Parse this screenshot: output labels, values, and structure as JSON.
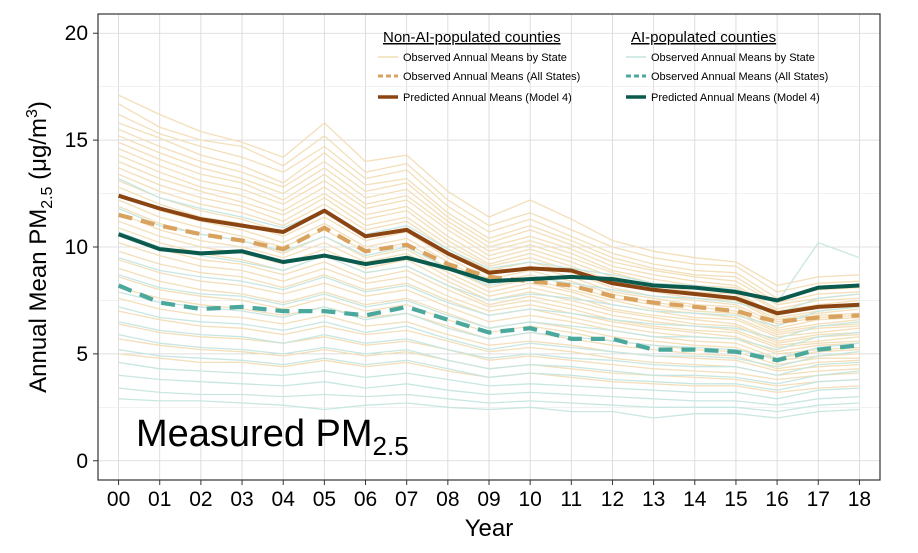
{
  "chart_data": {
    "type": "line",
    "title": "",
    "xlabel": "Year",
    "ylabel_main": "Annual Mean PM",
    "ylabel_sub": "2.5",
    "ylabel_unit_pre": " (μg/m",
    "ylabel_unit_sup": "3",
    "ylabel_unit_post": ")",
    "annotation_main": "Measured PM",
    "annotation_sub": "2.5",
    "x": [
      "00",
      "01",
      "02",
      "03",
      "04",
      "05",
      "06",
      "07",
      "08",
      "09",
      "10",
      "11",
      "12",
      "13",
      "14",
      "15",
      "16",
      "17",
      "18"
    ],
    "ylim": [
      -0.9,
      20.9
    ],
    "yticks": [
      0,
      5,
      10,
      15,
      20
    ],
    "grid": true,
    "legend_position": "top-right",
    "legend_groups": [
      {
        "heading": "Non-AI-populated counties",
        "entries": [
          "Observed Annual Means by State",
          "Observed Annual Means (All States)",
          "Predicted Annual Means (Model 4)"
        ]
      },
      {
        "heading": "AI-populated counties",
        "entries": [
          "Observed Annual Means by State",
          "Observed Annual Means (All States)",
          "Predicted Annual Means (Model 4)"
        ]
      }
    ],
    "series": [
      {
        "group": "Non-AI-populated counties",
        "kind": "all-states-observed",
        "color": "#d9a25f",
        "values": [
          11.5,
          11.0,
          10.6,
          10.3,
          9.9,
          10.9,
          9.8,
          10.1,
          9.2,
          8.6,
          8.4,
          8.2,
          7.7,
          7.4,
          7.2,
          7.0,
          6.5,
          6.7,
          6.8
        ]
      },
      {
        "group": "Non-AI-populated counties",
        "kind": "model4-predicted",
        "color": "#8b4513",
        "values": [
          12.4,
          11.8,
          11.3,
          11.0,
          10.7,
          11.7,
          10.5,
          10.8,
          9.7,
          8.8,
          9.0,
          8.9,
          8.3,
          8.0,
          7.8,
          7.6,
          6.9,
          7.2,
          7.3
        ]
      },
      {
        "group": "AI-populated counties",
        "kind": "all-states-observed",
        "color": "#4aa89c",
        "values": [
          8.2,
          7.4,
          7.1,
          7.2,
          7.0,
          7.0,
          6.8,
          7.2,
          6.6,
          6.0,
          6.2,
          5.7,
          5.7,
          5.2,
          5.2,
          5.1,
          4.7,
          5.2,
          5.4
        ]
      },
      {
        "group": "AI-populated counties",
        "kind": "model4-predicted",
        "color": "#0b5a4e",
        "values": [
          10.6,
          9.9,
          9.7,
          9.8,
          9.3,
          9.6,
          9.2,
          9.5,
          9.0,
          8.4,
          8.5,
          8.6,
          8.5,
          8.2,
          8.1,
          7.9,
          7.5,
          8.1,
          8.2
        ]
      }
    ],
    "state_series": [
      {
        "group": "Non-AI-populated counties",
        "color": "#f2ddb5",
        "lines": [
          [
            17.1,
            16.2,
            15.4,
            14.9,
            14.2,
            15.8,
            14.0,
            14.3,
            12.6,
            11.4,
            12.2,
            11.3,
            10.3,
            9.8,
            9.5,
            9.3,
            8.2,
            8.6,
            8.7
          ],
          [
            16.7,
            15.6,
            15.0,
            14.7,
            13.8,
            15.2,
            13.5,
            13.9,
            12.2,
            11.0,
            11.6,
            10.8,
            10.0,
            9.5,
            9.2,
            9.1,
            7.9,
            8.3,
            8.4
          ],
          [
            16.2,
            15.3,
            14.7,
            14.2,
            13.5,
            14.7,
            13.2,
            13.6,
            11.9,
            10.7,
            11.3,
            10.5,
            9.7,
            9.2,
            8.9,
            8.8,
            7.6,
            8.0,
            8.1
          ],
          [
            15.8,
            15.1,
            14.3,
            13.8,
            13.0,
            14.4,
            12.9,
            13.2,
            11.6,
            10.4,
            11.0,
            10.3,
            9.5,
            9.0,
            8.7,
            8.6,
            7.4,
            7.8,
            7.9
          ],
          [
            15.5,
            14.7,
            14.0,
            13.5,
            12.8,
            14.0,
            12.6,
            13.0,
            11.4,
            10.2,
            10.8,
            10.1,
            9.3,
            8.9,
            8.6,
            8.4,
            7.3,
            7.6,
            7.8
          ],
          [
            15.2,
            14.4,
            13.7,
            13.2,
            12.5,
            13.7,
            12.3,
            12.7,
            11.2,
            10.0,
            10.5,
            9.9,
            9.1,
            8.7,
            8.4,
            8.2,
            7.1,
            7.5,
            7.6
          ],
          [
            14.9,
            14.1,
            13.4,
            13.0,
            12.2,
            13.4,
            12.0,
            12.4,
            11.0,
            9.8,
            10.3,
            9.7,
            8.9,
            8.5,
            8.2,
            8.1,
            7.0,
            7.3,
            7.5
          ],
          [
            14.6,
            13.8,
            13.1,
            12.7,
            12.0,
            13.1,
            11.8,
            12.2,
            10.8,
            9.6,
            10.1,
            9.5,
            8.8,
            8.3,
            8.1,
            7.9,
            6.8,
            7.2,
            7.3
          ],
          [
            14.3,
            13.5,
            12.8,
            12.4,
            11.7,
            12.8,
            11.5,
            11.9,
            10.5,
            9.4,
            9.9,
            9.3,
            8.6,
            8.2,
            7.9,
            7.8,
            6.7,
            7.0,
            7.2
          ],
          [
            14.0,
            13.2,
            12.6,
            12.1,
            11.5,
            12.5,
            11.3,
            11.7,
            10.3,
            9.2,
            9.7,
            9.1,
            8.4,
            8.0,
            7.8,
            7.6,
            6.6,
            6.9,
            7.1
          ],
          [
            13.7,
            12.9,
            12.3,
            11.9,
            11.2,
            12.3,
            11.0,
            11.4,
            10.1,
            9.1,
            9.5,
            8.9,
            8.3,
            7.9,
            7.6,
            7.5,
            6.5,
            6.8,
            6.9
          ],
          [
            13.4,
            12.6,
            12.0,
            11.6,
            11.0,
            12.0,
            10.8,
            11.2,
            9.9,
            8.9,
            9.3,
            8.8,
            8.1,
            7.7,
            7.5,
            7.3,
            6.4,
            6.7,
            6.8
          ],
          [
            13.1,
            12.3,
            11.7,
            11.3,
            10.7,
            11.7,
            10.5,
            10.9,
            9.7,
            8.7,
            9.1,
            8.6,
            7.9,
            7.6,
            7.3,
            7.2,
            6.2,
            6.6,
            6.7
          ],
          [
            12.8,
            12.0,
            11.4,
            11.1,
            10.5,
            11.4,
            10.3,
            10.7,
            9.5,
            8.5,
            8.9,
            8.4,
            7.8,
            7.4,
            7.2,
            7.0,
            6.1,
            6.4,
            6.6
          ],
          [
            12.5,
            11.7,
            11.2,
            10.8,
            10.2,
            11.1,
            10.0,
            10.4,
            9.3,
            8.3,
            8.7,
            8.2,
            7.6,
            7.3,
            7.0,
            6.9,
            6.0,
            6.3,
            6.4
          ],
          [
            12.2,
            11.4,
            10.9,
            10.5,
            10.0,
            10.8,
            9.8,
            10.2,
            9.0,
            8.1,
            8.5,
            8.0,
            7.5,
            7.1,
            6.9,
            6.7,
            5.9,
            6.2,
            6.3
          ],
          [
            11.9,
            11.1,
            10.6,
            10.3,
            9.7,
            10.5,
            9.5,
            9.9,
            8.8,
            7.9,
            8.3,
            7.9,
            7.3,
            7.0,
            6.7,
            6.6,
            5.8,
            6.0,
            6.2
          ],
          [
            11.6,
            10.8,
            10.3,
            10.0,
            9.5,
            10.2,
            9.3,
            9.7,
            8.6,
            7.7,
            8.1,
            7.7,
            7.1,
            6.8,
            6.6,
            6.4,
            5.6,
            5.9,
            6.0
          ],
          [
            11.2,
            10.5,
            10.0,
            9.7,
            9.2,
            9.9,
            9.0,
            9.4,
            8.4,
            7.5,
            7.9,
            7.5,
            7.0,
            6.7,
            6.4,
            6.3,
            5.5,
            5.8,
            5.9
          ],
          [
            10.9,
            10.2,
            9.7,
            9.4,
            8.9,
            9.6,
            8.8,
            9.1,
            8.2,
            7.3,
            7.7,
            7.3,
            6.8,
            6.5,
            6.3,
            6.1,
            5.4,
            5.6,
            5.8
          ],
          [
            10.6,
            9.9,
            9.4,
            9.2,
            8.7,
            9.3,
            8.5,
            8.9,
            8.0,
            7.2,
            7.5,
            7.1,
            6.6,
            6.3,
            6.1,
            6.0,
            5.3,
            5.5,
            5.6
          ],
          [
            10.2,
            9.6,
            9.1,
            8.9,
            8.4,
            9.0,
            8.3,
            8.6,
            7.7,
            7.0,
            7.3,
            6.9,
            6.5,
            6.2,
            6.0,
            5.8,
            5.1,
            5.4,
            5.5
          ],
          [
            9.8,
            9.2,
            8.8,
            8.6,
            8.1,
            8.7,
            8.0,
            8.3,
            7.5,
            6.8,
            7.1,
            6.7,
            6.3,
            6.0,
            5.8,
            5.7,
            5.0,
            5.2,
            5.3
          ],
          [
            9.4,
            8.8,
            8.4,
            8.2,
            7.8,
            8.3,
            7.7,
            8.0,
            7.2,
            6.5,
            6.8,
            6.5,
            6.1,
            5.8,
            5.6,
            5.5,
            4.8,
            5.1,
            5.2
          ],
          [
            9.0,
            8.4,
            8.0,
            7.8,
            7.4,
            7.9,
            7.3,
            7.6,
            6.9,
            6.2,
            6.5,
            6.2,
            5.8,
            5.6,
            5.4,
            5.3,
            4.7,
            4.9,
            5.0
          ],
          [
            8.6,
            8.0,
            7.7,
            7.5,
            7.1,
            7.6,
            7.0,
            7.3,
            6.6,
            6.0,
            6.3,
            6.0,
            5.6,
            5.4,
            5.2,
            5.1,
            4.5,
            4.8,
            4.8
          ],
          [
            8.1,
            7.6,
            7.3,
            7.1,
            6.8,
            7.2,
            6.7,
            6.9,
            6.3,
            5.7,
            6.0,
            5.7,
            5.4,
            5.2,
            5.0,
            4.9,
            4.3,
            4.6,
            4.7
          ],
          [
            7.6,
            7.1,
            6.8,
            6.7,
            6.4,
            6.8,
            6.3,
            6.5,
            5.9,
            5.4,
            5.6,
            5.4,
            5.1,
            4.9,
            4.8,
            4.7,
            4.2,
            4.4,
            4.5
          ],
          [
            7.0,
            6.6,
            6.3,
            6.2,
            5.9,
            6.3,
            5.9,
            6.1,
            5.6,
            5.1,
            5.3,
            5.1,
            4.8,
            4.6,
            4.5,
            4.4,
            4.0,
            4.2,
            4.3
          ],
          [
            6.4,
            6.0,
            5.8,
            5.7,
            5.5,
            5.8,
            5.4,
            5.6,
            5.2,
            4.7,
            4.9,
            4.7,
            4.5,
            4.3,
            4.2,
            4.1,
            3.8,
            4.0,
            4.1
          ],
          [
            5.7,
            5.4,
            5.2,
            5.1,
            4.9,
            5.2,
            4.9,
            5.1,
            4.7,
            4.3,
            4.5,
            4.3,
            4.1,
            4.0,
            3.9,
            3.8,
            3.5,
            3.7,
            3.8
          ],
          [
            5.0,
            4.8,
            4.6,
            4.6,
            4.4,
            4.7,
            4.4,
            4.6,
            4.2,
            3.9,
            4.1,
            3.9,
            3.7,
            3.6,
            3.5,
            3.5,
            3.2,
            3.4,
            3.5
          ]
        ]
      },
      {
        "group": "AI-populated counties",
        "color": "#c5e6e0",
        "lines": [
          [
            13.2,
            12.3,
            11.8,
            11.4,
            10.9,
            11.7,
            10.6,
            11.0,
            9.9,
            9.0,
            9.3,
            9.0,
            8.7,
            8.3,
            8.2,
            8.0,
            7.4,
            10.2,
            9.5
          ],
          [
            11.8,
            11.0,
            10.6,
            10.3,
            9.8,
            10.5,
            9.6,
            10.0,
            9.0,
            8.2,
            8.6,
            8.3,
            8.0,
            7.7,
            7.6,
            7.4,
            6.9,
            7.6,
            7.8
          ],
          [
            10.7,
            10.0,
            9.6,
            9.3,
            8.9,
            9.6,
            8.8,
            9.1,
            8.2,
            7.5,
            7.8,
            7.6,
            7.3,
            7.0,
            6.9,
            6.8,
            6.3,
            7.0,
            7.2
          ],
          [
            9.5,
            8.9,
            8.6,
            8.4,
            8.0,
            8.6,
            7.9,
            8.2,
            7.4,
            6.8,
            7.1,
            6.9,
            6.6,
            6.4,
            6.3,
            6.2,
            5.7,
            6.3,
            6.5
          ],
          [
            8.7,
            8.1,
            7.8,
            7.7,
            7.3,
            7.8,
            7.2,
            7.5,
            6.8,
            6.2,
            6.5,
            6.3,
            6.1,
            5.8,
            5.8,
            5.7,
            5.2,
            5.8,
            6.0
          ],
          [
            7.9,
            7.4,
            7.2,
            7.0,
            6.7,
            7.2,
            6.6,
            6.9,
            6.2,
            5.7,
            6.0,
            5.8,
            5.6,
            5.4,
            5.3,
            5.2,
            4.8,
            5.3,
            5.5
          ],
          [
            7.2,
            6.7,
            6.5,
            6.4,
            6.1,
            6.5,
            6.0,
            6.3,
            5.7,
            5.2,
            5.5,
            5.3,
            5.1,
            4.9,
            4.9,
            4.8,
            4.4,
            4.9,
            5.1
          ],
          [
            6.5,
            6.1,
            5.9,
            5.8,
            5.5,
            5.9,
            5.5,
            5.7,
            5.2,
            4.8,
            5.0,
            4.8,
            4.7,
            4.5,
            4.4,
            4.4,
            4.0,
            4.5,
            4.6
          ],
          [
            5.9,
            5.5,
            5.3,
            5.2,
            5.0,
            5.3,
            5.0,
            5.2,
            4.7,
            4.3,
            4.5,
            4.4,
            4.2,
            4.0,
            4.0,
            3.9,
            3.6,
            4.0,
            4.2
          ],
          [
            5.2,
            4.9,
            4.8,
            4.7,
            4.5,
            4.8,
            4.5,
            4.7,
            4.3,
            3.9,
            4.1,
            4.0,
            3.8,
            3.7,
            3.6,
            3.6,
            3.3,
            3.7,
            3.8
          ],
          [
            4.6,
            4.3,
            4.2,
            4.1,
            4.0,
            4.2,
            3.9,
            4.1,
            3.8,
            3.5,
            3.6,
            3.5,
            3.4,
            3.3,
            3.2,
            3.2,
            2.9,
            3.3,
            3.4
          ],
          [
            4.0,
            3.8,
            3.7,
            3.6,
            3.5,
            3.7,
            3.4,
            3.6,
            3.3,
            3.1,
            3.2,
            3.1,
            3.0,
            2.9,
            2.8,
            2.8,
            2.6,
            2.9,
            3.0
          ],
          [
            3.4,
            3.2,
            3.1,
            3.1,
            3.0,
            3.1,
            3.0,
            3.1,
            2.9,
            2.7,
            2.8,
            2.7,
            2.6,
            2.5,
            2.5,
            2.5,
            2.3,
            2.6,
            2.7
          ],
          [
            2.9,
            2.8,
            2.8,
            2.7,
            2.6,
            2.4,
            2.6,
            2.7,
            2.5,
            2.4,
            2.5,
            2.3,
            2.3,
            2.0,
            2.2,
            2.2,
            2.0,
            2.3,
            2.4
          ]
        ]
      }
    ]
  }
}
